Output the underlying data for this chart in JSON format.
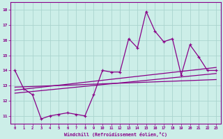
{
  "xlabel": "Windchill (Refroidissement éolien,°C)",
  "bg_color": "#cceee8",
  "grid_color": "#aad4ce",
  "line_color": "#880088",
  "x_values": [
    0,
    1,
    2,
    3,
    4,
    5,
    6,
    7,
    8,
    9,
    10,
    11,
    12,
    13,
    14,
    15,
    16,
    17,
    18,
    19,
    20,
    21,
    22,
    23
  ],
  "series1": [
    14.0,
    12.8,
    12.4,
    10.8,
    11.0,
    11.1,
    11.2,
    11.1,
    11.0,
    12.4,
    14.0,
    13.9,
    13.9,
    16.1,
    15.5,
    17.9,
    16.6,
    15.9,
    16.1,
    13.7,
    15.7,
    14.9,
    14.0,
    14.0
  ],
  "trend1_x": [
    0,
    23
  ],
  "trend1_y": [
    12.9,
    13.4
  ],
  "trend2_x": [
    0,
    23
  ],
  "trend2_y": [
    12.7,
    14.2
  ],
  "trend3_x": [
    0,
    23
  ],
  "trend3_y": [
    12.5,
    13.8
  ],
  "ylim": [
    10.5,
    18.5
  ],
  "yticks": [
    11,
    12,
    13,
    14,
    15,
    16,
    17,
    18
  ],
  "xticks": [
    0,
    1,
    2,
    3,
    4,
    5,
    6,
    7,
    8,
    9,
    10,
    11,
    12,
    13,
    14,
    15,
    16,
    17,
    18,
    19,
    20,
    21,
    22,
    23
  ]
}
